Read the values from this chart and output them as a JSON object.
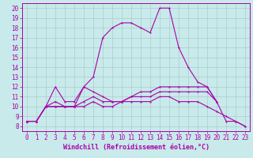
{
  "background_color": "#c8eaea",
  "grid_color": "#aacccc",
  "line_color": "#aa00aa",
  "xlabel": "Windchill (Refroidissement éolien,°C)",
  "ylabel_ticks": [
    8,
    9,
    10,
    11,
    12,
    13,
    14,
    15,
    16,
    17,
    18,
    19,
    20
  ],
  "xticks": [
    0,
    1,
    2,
    3,
    4,
    5,
    6,
    7,
    8,
    9,
    10,
    11,
    12,
    13,
    14,
    15,
    16,
    17,
    18,
    19,
    20,
    21,
    22,
    23
  ],
  "xlim": [
    -0.5,
    23.5
  ],
  "ylim": [
    7.5,
    20.5
  ],
  "series": [
    [
      8.5,
      8.5,
      10.0,
      10.0,
      10.0,
      10.0,
      12.0,
      13.0,
      17.0,
      18.0,
      18.5,
      18.5,
      18.0,
      17.5,
      20.0,
      20.0,
      16.0,
      14.0,
      12.5,
      12.0,
      10.5,
      8.5,
      8.5,
      8.0
    ],
    [
      8.5,
      8.5,
      10.0,
      12.0,
      10.5,
      10.5,
      12.0,
      11.5,
      11.0,
      10.5,
      10.5,
      11.0,
      11.5,
      11.5,
      12.0,
      12.0,
      12.0,
      12.0,
      12.0,
      12.0,
      10.5,
      null,
      null,
      null
    ],
    [
      8.5,
      8.5,
      10.0,
      10.5,
      10.0,
      10.0,
      10.5,
      11.0,
      10.5,
      10.5,
      10.5,
      11.0,
      11.0,
      11.0,
      11.5,
      11.5,
      11.5,
      11.5,
      11.5,
      11.5,
      10.5,
      null,
      null,
      null
    ],
    [
      8.5,
      8.5,
      10.0,
      10.0,
      10.0,
      10.0,
      10.0,
      10.5,
      10.0,
      10.0,
      10.5,
      10.5,
      10.5,
      10.5,
      11.0,
      11.0,
      10.5,
      10.5,
      10.5,
      10.0,
      9.5,
      9.0,
      8.5,
      8.0
    ]
  ],
  "tick_fontsize": 5.5,
  "xlabel_fontsize": 6.0,
  "linewidth": 0.8,
  "markersize": 2.5
}
